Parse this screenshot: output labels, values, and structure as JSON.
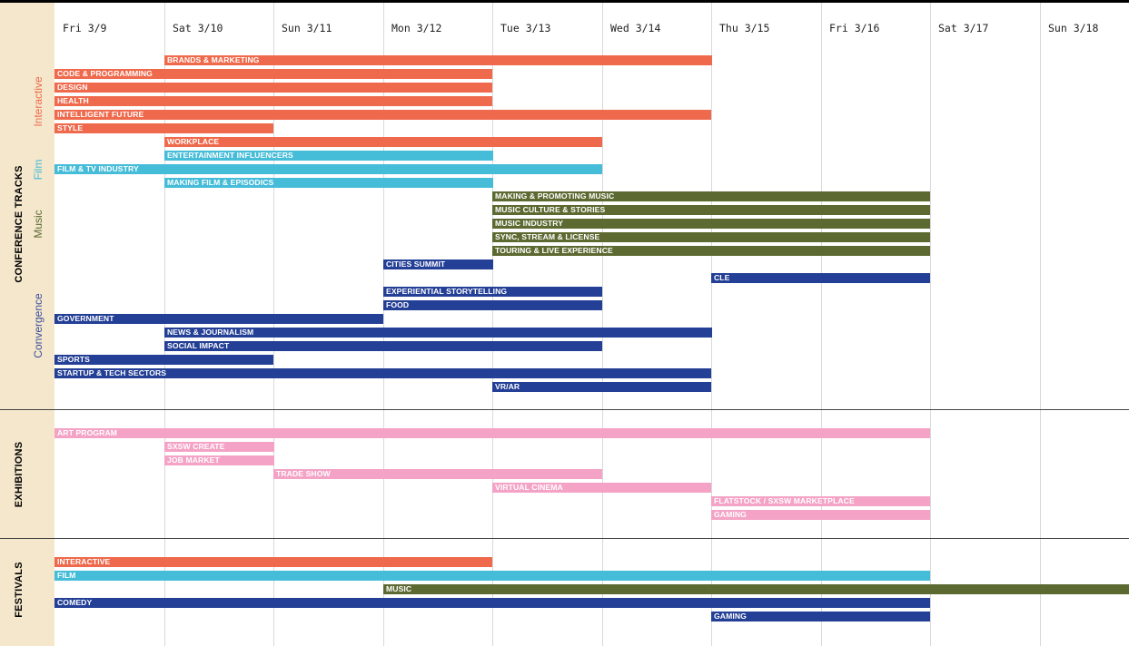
{
  "chart_data": {
    "type": "gantt",
    "title": "",
    "days": [
      "Fri 3/9",
      "Sat 3/10",
      "Sun 3/11",
      "Mon 3/12",
      "Tue 3/13",
      "Wed 3/14",
      "Thu 3/15",
      "Fri 3/16",
      "Sat 3/17",
      "Sun 3/18"
    ],
    "colors": {
      "interactive": "#ef6a4c",
      "film": "#45bcd8",
      "music": "#5c6a32",
      "convergence": "#233f96",
      "exhibitions": "#f4a3c6"
    },
    "sections": [
      {
        "label": "CONFERENCE TRACKS",
        "groups": [
          {
            "label": "Interactive",
            "color_key": "interactive",
            "label_color": "#ef6a4c"
          },
          {
            "label": "Film",
            "color_key": "film",
            "label_color": "#45bcd8"
          },
          {
            "label": "Music",
            "color_key": "music",
            "label_color": "#5c6a32"
          },
          {
            "label": "Convergence",
            "color_key": "convergence",
            "label_color": "#3b4d9a"
          }
        ]
      },
      {
        "label": "EXHIBITIONS",
        "groups": []
      },
      {
        "label": "FESTIVALS",
        "groups": []
      }
    ],
    "bars": [
      {
        "label": "BRANDS & MARKETING",
        "start": "Sat 3/10",
        "end": "Thu 3/15",
        "color_key": "interactive",
        "section": 0
      },
      {
        "label": "CODE & PROGRAMMING",
        "start": "Fri 3/9",
        "end": "Tue 3/13",
        "color_key": "interactive",
        "section": 0
      },
      {
        "label": "DESIGN",
        "start": "Fri 3/9",
        "end": "Tue 3/13",
        "color_key": "interactive",
        "section": 0
      },
      {
        "label": "HEALTH",
        "start": "Fri 3/9",
        "end": "Tue 3/13",
        "color_key": "interactive",
        "section": 0
      },
      {
        "label": "INTELLIGENT FUTURE",
        "start": "Fri 3/9",
        "end": "Thu 3/15",
        "color_key": "interactive",
        "section": 0
      },
      {
        "label": "STYLE",
        "start": "Fri 3/9",
        "end": "Sun 3/11",
        "color_key": "interactive",
        "section": 0
      },
      {
        "label": "WORKPLACE",
        "start": "Sat 3/10",
        "end": "Wed 3/14",
        "color_key": "interactive",
        "section": 0
      },
      {
        "label": "ENTERTAINMENT INFLUENCERS",
        "start": "Sat 3/10",
        "end": "Tue 3/13",
        "color_key": "film",
        "section": 0
      },
      {
        "label": "FILM & TV INDUSTRY",
        "start": "Fri 3/9",
        "end": "Wed 3/14",
        "color_key": "film",
        "section": 0
      },
      {
        "label": "MAKING FILM & EPISODICS",
        "start": "Sat 3/10",
        "end": "Tue 3/13",
        "color_key": "film",
        "section": 0
      },
      {
        "label": "MAKING & PROMOTING MUSIC",
        "start": "Tue 3/13",
        "end": "Sat 3/17",
        "color_key": "music",
        "section": 0
      },
      {
        "label": "MUSIC CULTURE & STORIES",
        "start": "Tue 3/13",
        "end": "Sat 3/17",
        "color_key": "music",
        "section": 0
      },
      {
        "label": "MUSIC INDUSTRY",
        "start": "Tue 3/13",
        "end": "Sat 3/17",
        "color_key": "music",
        "section": 0
      },
      {
        "label": "SYNC, STREAM & LICENSE",
        "start": "Tue 3/13",
        "end": "Sat 3/17",
        "color_key": "music",
        "section": 0
      },
      {
        "label": "TOURING & LIVE EXPERIENCE",
        "start": "Tue 3/13",
        "end": "Sat 3/17",
        "color_key": "music",
        "section": 0
      },
      {
        "label": "CITIES SUMMIT",
        "start": "Mon 3/12",
        "end": "Tue 3/13",
        "color_key": "convergence",
        "section": 0
      },
      {
        "label": "CLE",
        "start": "Thu 3/15",
        "end": "Sat 3/17",
        "color_key": "convergence",
        "section": 0
      },
      {
        "label": "EXPERIENTIAL STORYTELLING",
        "start": "Mon 3/12",
        "end": "Wed 3/14",
        "color_key": "convergence",
        "section": 0
      },
      {
        "label": "FOOD",
        "start": "Mon 3/12",
        "end": "Wed 3/14",
        "color_key": "convergence",
        "section": 0
      },
      {
        "label": "GOVERNMENT",
        "start": "Fri 3/9",
        "end": "Mon 3/12",
        "color_key": "convergence",
        "section": 0
      },
      {
        "label": "NEWS & JOURNALISM",
        "start": "Sat 3/10",
        "end": "Thu 3/15",
        "color_key": "convergence",
        "section": 0
      },
      {
        "label": "SOCIAL IMPACT",
        "start": "Sat 3/10",
        "end": "Wed 3/14",
        "color_key": "convergence",
        "section": 0
      },
      {
        "label": "SPORTS",
        "start": "Fri 3/9",
        "end": "Sun 3/11",
        "color_key": "convergence",
        "section": 0
      },
      {
        "label": "STARTUP & TECH SECTORS",
        "start": "Fri 3/9",
        "end": "Thu 3/15",
        "color_key": "convergence",
        "section": 0
      },
      {
        "label": "VR/AR",
        "start": "Tue 3/13",
        "end": "Thu 3/15",
        "color_key": "convergence",
        "section": 0
      },
      {
        "label": "ART PROGRAM",
        "start": "Fri 3/9",
        "end": "Sat 3/17",
        "color_key": "exhibitions",
        "section": 1
      },
      {
        "label": "SXSW CREATE",
        "start": "Sat 3/10",
        "end": "Sun 3/11",
        "color_key": "exhibitions",
        "section": 1
      },
      {
        "label": "JOB MARKET",
        "start": "Sat 3/10",
        "end": "Sun 3/11",
        "color_key": "exhibitions",
        "section": 1
      },
      {
        "label": "TRADE SHOW",
        "start": "Sun 3/11",
        "end": "Wed 3/14",
        "color_key": "exhibitions",
        "section": 1
      },
      {
        "label": "VIRTUAL CINEMA",
        "start": "Tue 3/13",
        "end": "Thu 3/15",
        "color_key": "exhibitions",
        "section": 1
      },
      {
        "label": "FLATSTOCK / SXSW MARKETPLACE",
        "start": "Thu 3/15",
        "end": "Sat 3/17",
        "color_key": "exhibitions",
        "section": 1
      },
      {
        "label": "GAMING",
        "start": "Thu 3/15",
        "end": "Sat 3/17",
        "color_key": "exhibitions",
        "section": 1
      },
      {
        "label": "INTERACTIVE",
        "start": "Fri 3/9",
        "end": "Tue 3/13",
        "color_key": "interactive",
        "section": 2
      },
      {
        "label": "FILM",
        "start": "Fri 3/9",
        "end": "Sat 3/17",
        "color_key": "film",
        "section": 2
      },
      {
        "label": "MUSIC",
        "start": "Mon 3/12",
        "end": "Sun 3/18",
        "color_key": "music",
        "section": 2
      },
      {
        "label": "COMEDY",
        "start": "Fri 3/9",
        "end": "Sat 3/17",
        "color_key": "convergence",
        "section": 2
      },
      {
        "label": "GAMING",
        "start": "Thu 3/15",
        "end": "Sat 3/17",
        "color_key": "convergence",
        "section": 2
      }
    ]
  }
}
